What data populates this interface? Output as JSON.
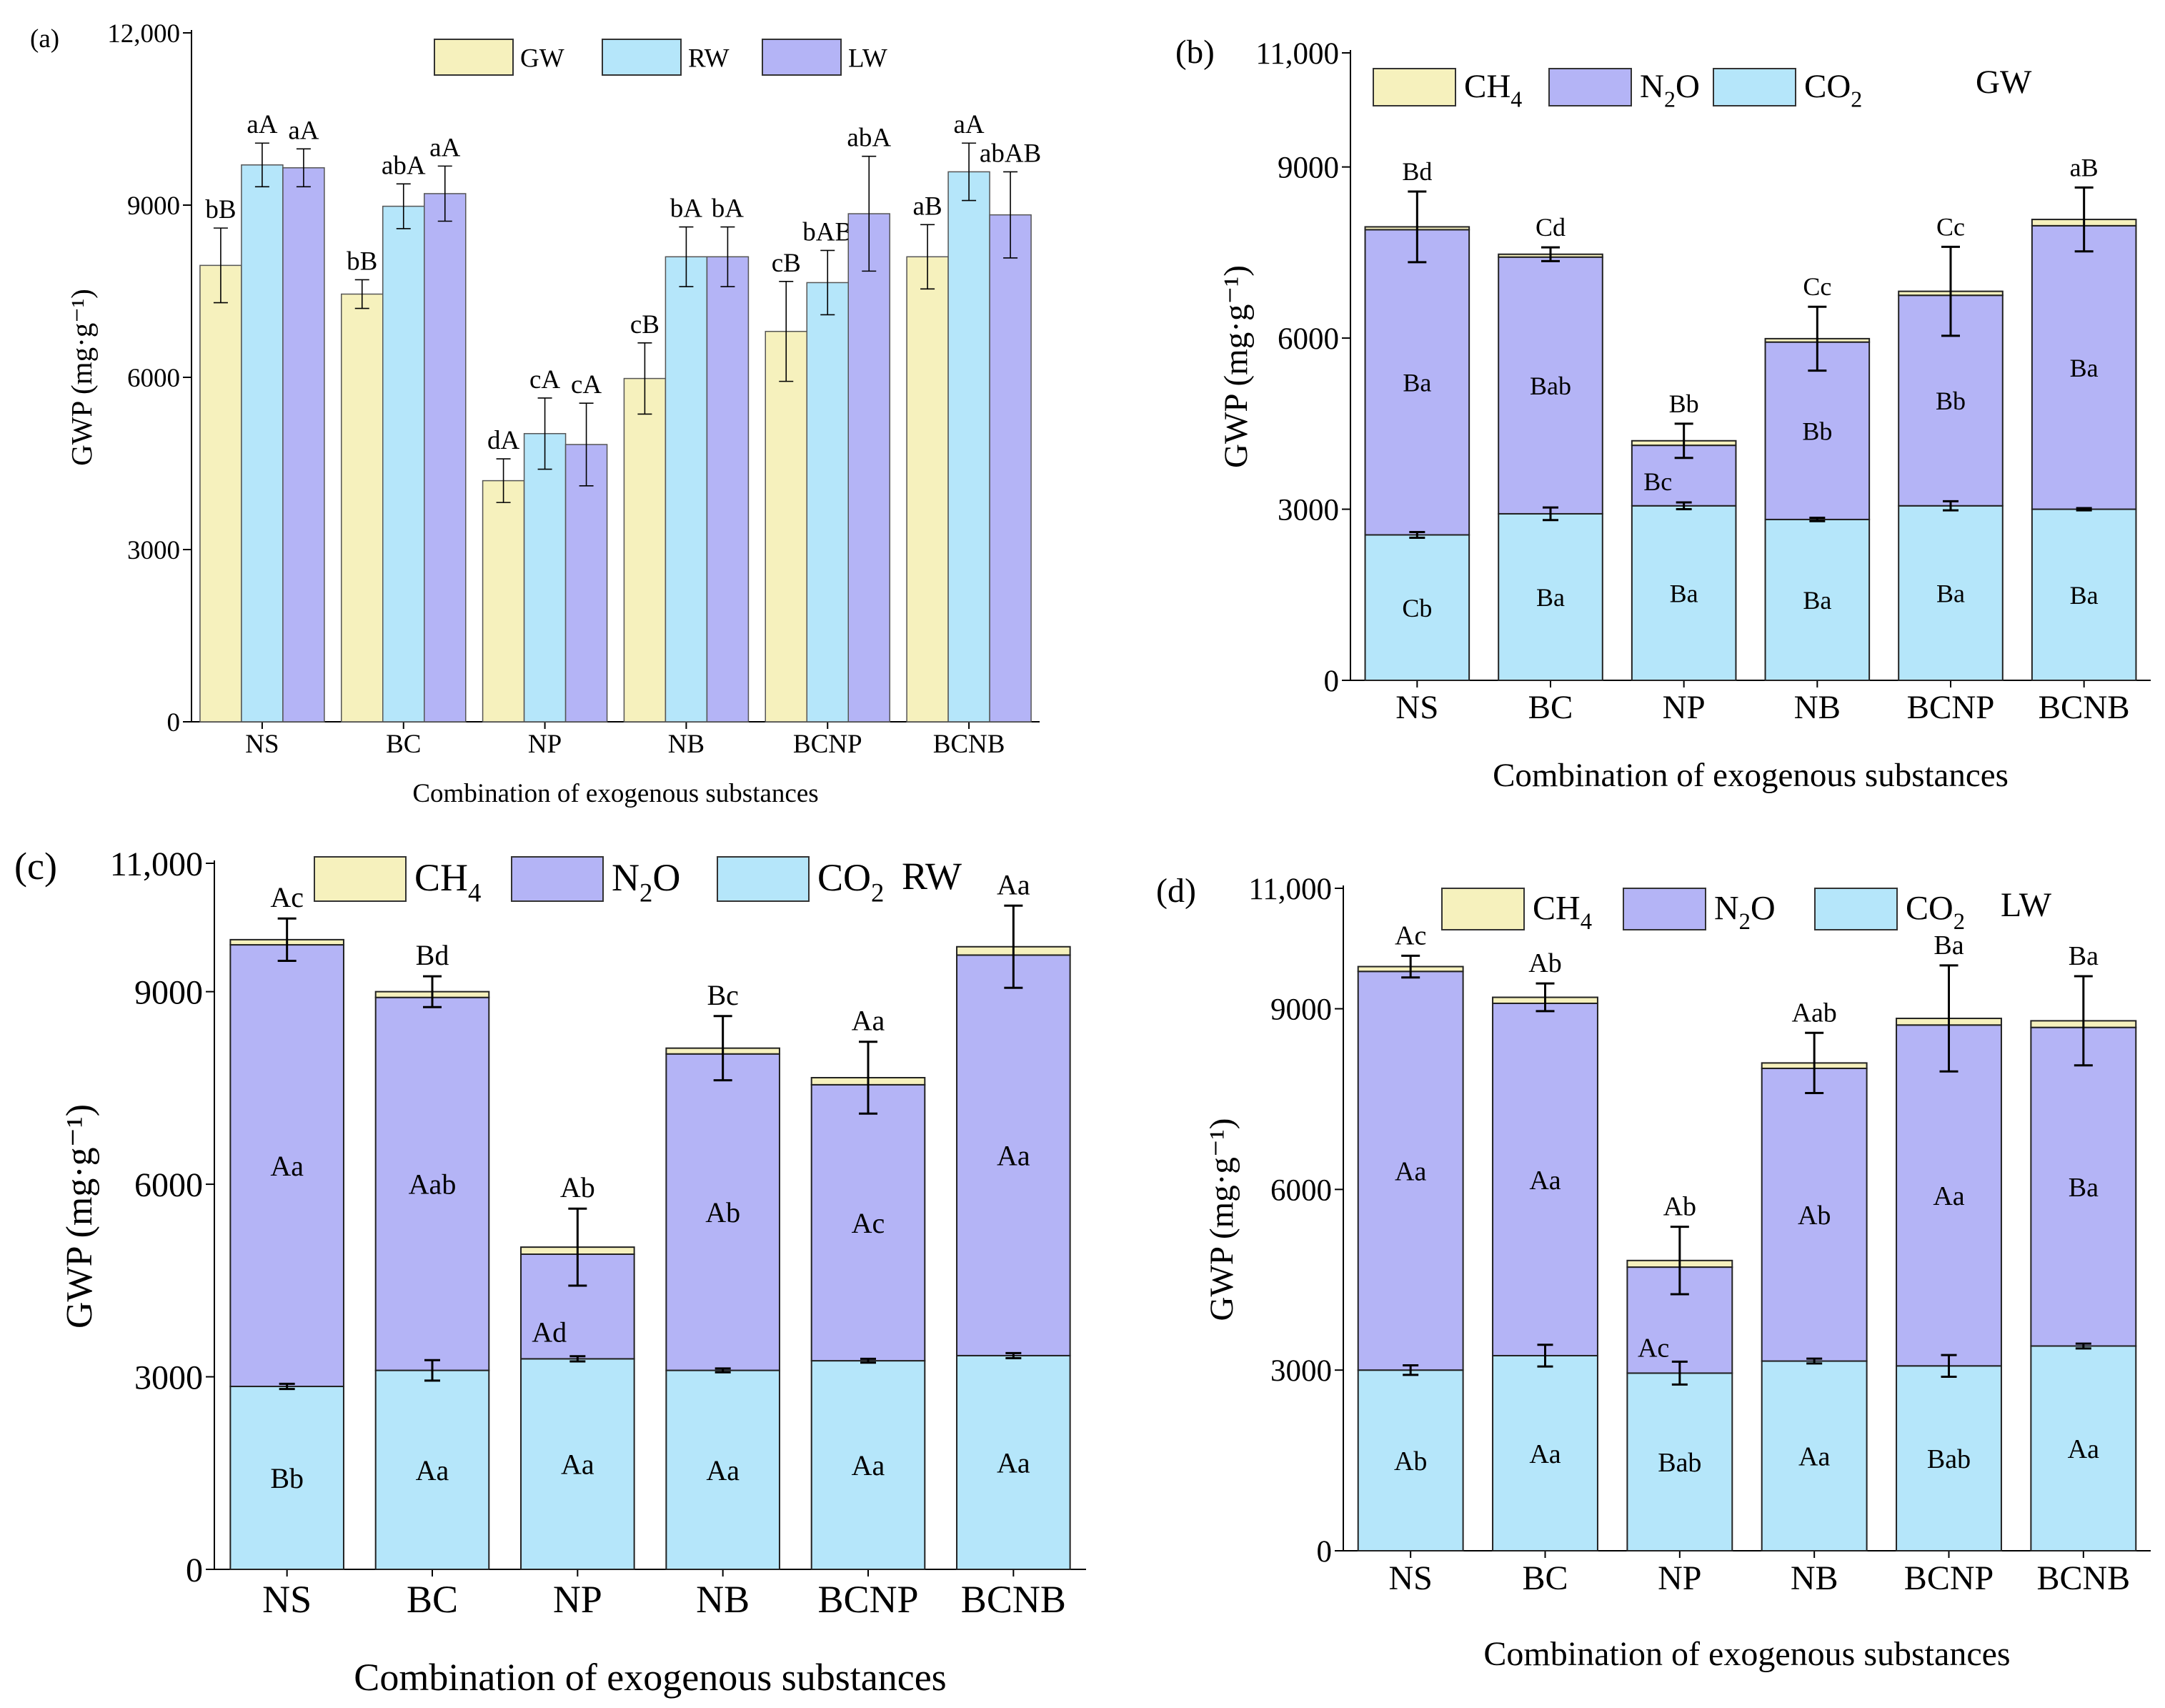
{
  "figure": {
    "xlabel": "Combination of exogenous substances",
    "ylabel": "GWP",
    "ylabel_unit": "(mg·g⁻¹)"
  },
  "colors": {
    "GW": "#f6f1bd",
    "RW": "#b5e6fa",
    "LW": "#b4b4f6",
    "CH4": "#f6f1bd",
    "N2O": "#b4b4f6",
    "CO2": "#b5e6fa",
    "axis": "#000000"
  },
  "chart_data": [
    {
      "panel": "(a)",
      "type": "bar",
      "categories": [
        "NS",
        "BC",
        "NP",
        "NB",
        "BCNP",
        "BCNB"
      ],
      "series": [
        {
          "name": "GW",
          "values": [
            7950,
            7450,
            4200,
            5980,
            6800,
            8100
          ],
          "errors": [
            650,
            250,
            380,
            620,
            870,
            560
          ],
          "labels": [
            "bB",
            "bB",
            "dA",
            "cB",
            "cB",
            "aB"
          ]
        },
        {
          "name": "RW",
          "values": [
            9700,
            8980,
            5020,
            8100,
            7650,
            9580
          ],
          "errors": [
            380,
            390,
            620,
            520,
            560,
            500
          ],
          "labels": [
            "aA",
            "abA",
            "cA",
            "bA",
            "bAB",
            "aA"
          ]
        },
        {
          "name": "LW",
          "values": [
            9650,
            9200,
            4830,
            8100,
            8850,
            8830
          ],
          "errors": [
            330,
            480,
            720,
            520,
            1000,
            750
          ],
          "labels": [
            "aA",
            "aA",
            "cA",
            "bA",
            "abA",
            "abAB"
          ]
        }
      ],
      "ylim": [
        0,
        12000
      ],
      "yticks": [
        "0",
        "3000",
        "6000",
        "9000",
        "12,000"
      ],
      "xlabel": "Combination of exogenous substances",
      "legend": [
        "GW",
        "RW",
        "LW"
      ]
    },
    {
      "panel": "(b)",
      "type": "stacked-bar",
      "tag": "GW",
      "categories": [
        "NS",
        "BC",
        "NP",
        "NB",
        "BCNP",
        "BCNB"
      ],
      "series": [
        {
          "name": "CO2",
          "values": [
            2550,
            2920,
            3060,
            2820,
            3060,
            3000
          ],
          "errors": [
            50,
            110,
            60,
            30,
            80,
            20
          ],
          "labels": [
            "Cb",
            "Ba",
            "Ba",
            "Ba",
            "Ba",
            "Ba"
          ]
        },
        {
          "name": "N2O",
          "values": [
            5350,
            4500,
            1060,
            3110,
            3690,
            4970
          ],
          "labels": [
            "Ba",
            "Bab",
            "Bc",
            "Bb",
            "Bb",
            "Ba"
          ]
        },
        {
          "name": "CH4",
          "values": [
            50,
            50,
            80,
            60,
            70,
            110
          ]
        }
      ],
      "total_errors": [
        620,
        120,
        300,
        560,
        780,
        560
      ],
      "top_labels": [
        "Bd",
        "Cd",
        "Bb",
        "Cc",
        "Cc",
        "aB"
      ],
      "ylim": [
        0,
        11000
      ],
      "yticks": [
        "0",
        "3000",
        "6000",
        "9000",
        "11,000"
      ],
      "legend": [
        "CH4",
        "N2O",
        "CO2"
      ],
      "xlabel": "Combination of exogenous substances"
    },
    {
      "panel": "(c)",
      "type": "stacked-bar",
      "tag": "RW",
      "categories": [
        "NS",
        "BC",
        "NP",
        "NB",
        "BCNP",
        "BCNB"
      ],
      "series": [
        {
          "name": "CO2",
          "values": [
            2850,
            3100,
            3280,
            3100,
            3250,
            3330
          ],
          "errors": [
            40,
            160,
            40,
            30,
            30,
            40
          ],
          "labels": [
            "Bb",
            "Aa",
            "Aa",
            "Aa",
            "Aa",
            "Aa"
          ]
        },
        {
          "name": "N2O",
          "values": [
            6880,
            5810,
            1630,
            4930,
            4300,
            6240
          ],
          "labels": [
            "Aa",
            "Aab",
            "Ad",
            "Ab",
            "Ac",
            "Aa"
          ]
        },
        {
          "name": "CH4",
          "values": [
            80,
            90,
            110,
            90,
            110,
            130
          ]
        }
      ],
      "total_errors": [
        330,
        240,
        600,
        500,
        560,
        640
      ],
      "top_labels": [
        "Ac",
        "Bd",
        "Ab",
        "Bc",
        "Aa",
        "Aa"
      ],
      "ylim": [
        0,
        11000
      ],
      "yticks": [
        "0",
        "3000",
        "6000",
        "9000",
        "11,000"
      ],
      "legend": [
        "CH4",
        "N2O",
        "CO2"
      ],
      "xlabel": "Combination of exogenous substances"
    },
    {
      "panel": "(d)",
      "type": "stacked-bar",
      "tag": "LW",
      "categories": [
        "NS",
        "BC",
        "NP",
        "NB",
        "BCNP",
        "BCNB"
      ],
      "series": [
        {
          "name": "CO2",
          "values": [
            3000,
            3240,
            2950,
            3150,
            3070,
            3400
          ],
          "errors": [
            80,
            180,
            190,
            40,
            180,
            40
          ],
          "labels": [
            "Ab",
            "Aa",
            "Bab",
            "Aa",
            "Bab",
            "Aa"
          ]
        },
        {
          "name": "N2O",
          "values": [
            6620,
            5850,
            1760,
            4860,
            5660,
            5290
          ],
          "labels": [
            "Aa",
            "Aa",
            "Ac",
            "Ab",
            "Aa",
            "Ba"
          ]
        },
        {
          "name": "CH4",
          "values": [
            80,
            100,
            110,
            90,
            110,
            110
          ]
        }
      ],
      "total_errors": [
        180,
        230,
        560,
        500,
        880,
        740
      ],
      "top_labels": [
        "Ac",
        "Ab",
        "Ab",
        "Aab",
        "Ba",
        "Ba"
      ],
      "ylim": [
        0,
        11000
      ],
      "yticks": [
        "0",
        "3000",
        "6000",
        "9000",
        "11,000"
      ],
      "legend": [
        "CH4",
        "N2O",
        "CO2"
      ],
      "xlabel": "Combination of exogenous substances"
    }
  ]
}
